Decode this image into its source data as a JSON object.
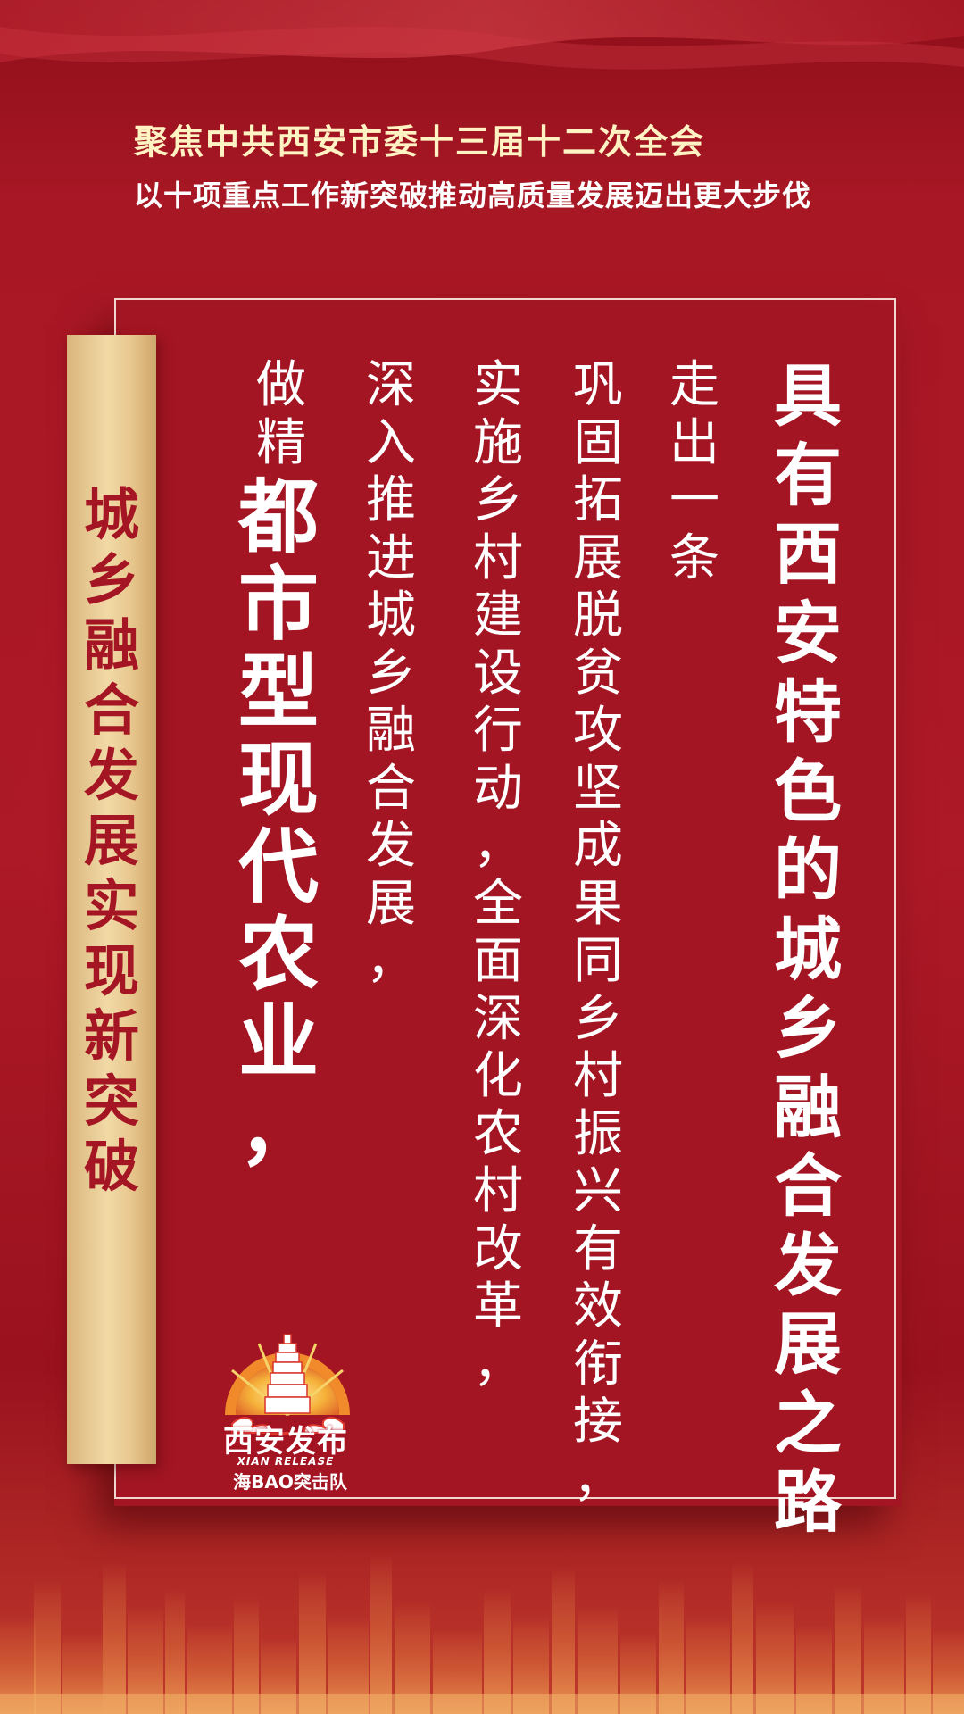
{
  "header": {
    "title": "聚焦中共西安市委十三届十二次全会",
    "subtitle": "以十项重点工作新突破推动高质量发展迈出更大步伐"
  },
  "banner": {
    "chars": [
      "城",
      "乡",
      "融",
      "合",
      "发",
      "展",
      "实",
      "现",
      "新",
      "突",
      "破"
    ]
  },
  "columns": {
    "col_big": [
      "具",
      "有",
      "西",
      "安",
      "特",
      "色",
      "的",
      "城",
      "乡",
      "融",
      "合",
      "发",
      "展",
      "之",
      "路"
    ],
    "col_1": [
      "走",
      "出",
      "一",
      "条"
    ],
    "col_2": [
      "巩",
      "固",
      "拓",
      "展",
      "脱",
      "贫",
      "攻",
      "坚",
      "成",
      "果",
      "同",
      "乡",
      "村",
      "振",
      "兴",
      "有",
      "效",
      "衔",
      "接",
      "，"
    ],
    "col_3": [
      "实",
      "施",
      "乡",
      "村",
      "建",
      "设",
      "行",
      "动",
      "，",
      "全",
      "面",
      "深",
      "化",
      "农",
      "村",
      "改",
      "革",
      "，"
    ],
    "col_4": [
      "深",
      "入",
      "推",
      "进",
      "城",
      "乡",
      "融",
      "合",
      "发",
      "展",
      "，"
    ],
    "col_5a": [
      "做",
      "精"
    ],
    "col_5b": [
      "都",
      "市",
      "型",
      "现",
      "代",
      "农",
      "业",
      "，"
    ]
  },
  "logo": {
    "name": "西安发布",
    "english": "XIAN RELEASE",
    "team": "海BAO突击队"
  },
  "colors": {
    "background": "#a31521",
    "banner_gold": "#f1d9a6",
    "banner_text": "#a51624",
    "title_text": "#fff3c4"
  }
}
